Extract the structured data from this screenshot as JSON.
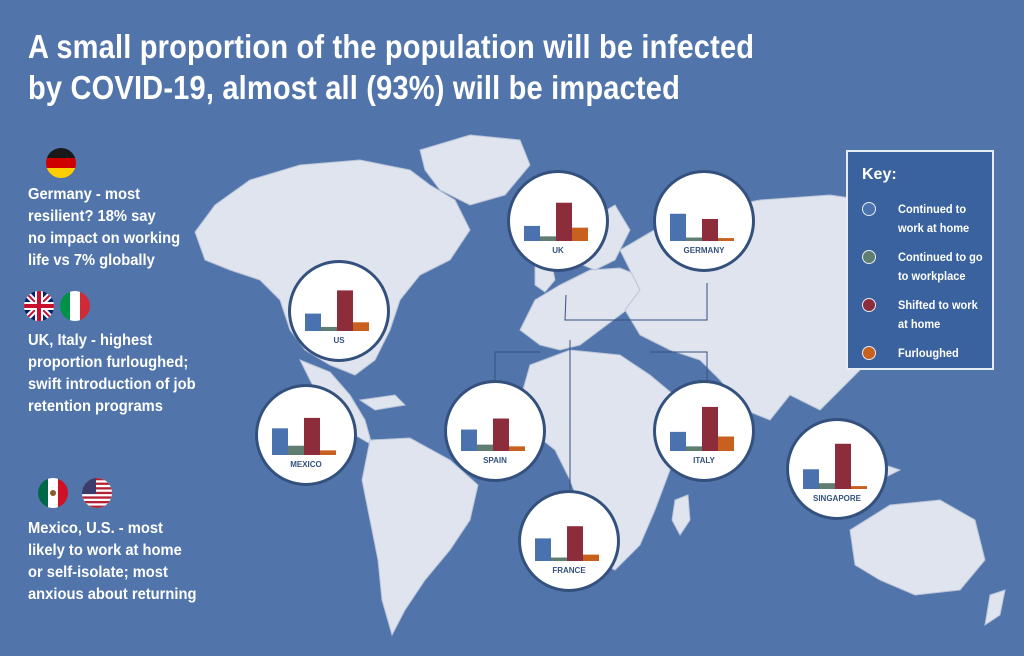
{
  "title": {
    "line1": "A small proportion of the population will be infected",
    "line2": "by COVID-19, almost all (93%) will be impacted"
  },
  "notes": {
    "germany": [
      "Germany - most",
      "resilient? 18% say",
      "no impact on working",
      "life vs 7% globally"
    ],
    "uk_italy": [
      "UK, Italy - highest",
      "proportion furloughed;",
      "swift introduction of job",
      "retention programs"
    ],
    "mexico_us": [
      "Mexico, U.S. -  most",
      "likely to work at home",
      "or self-isolate; most",
      "anxious about returning"
    ]
  },
  "key": {
    "title": "Key:",
    "items": [
      {
        "lines": [
          "Continued to",
          "work at home"
        ],
        "color": "#4a72ae"
      },
      {
        "lines": [
          "Continued to go",
          "to workplace"
        ],
        "color": "#5f7d70"
      },
      {
        "lines": [
          "Shifted to work",
          "at home"
        ],
        "color": "#8d2d3c"
      },
      {
        "lines": [
          "Furloughed"
        ],
        "color": "#c8601f"
      }
    ]
  },
  "chart_data": {
    "type": "bar",
    "series_names": [
      "Continued to work at home",
      "Continued to go to workplace",
      "Shifted to work at home",
      "Furloughed"
    ],
    "colors": [
      "#4a72ae",
      "#5f7d70",
      "#8d2d3c",
      "#c8601f"
    ],
    "ylim": [
      0,
      100
    ],
    "countries": [
      {
        "name": "US",
        "values": [
          30,
          7,
          70,
          15
        ]
      },
      {
        "name": "UK",
        "values": [
          26,
          8,
          66,
          23
        ]
      },
      {
        "name": "GERMANY",
        "values": [
          47,
          6,
          38,
          5
        ]
      },
      {
        "name": "MEXICO",
        "values": [
          46,
          16,
          64,
          8
        ]
      },
      {
        "name": "SPAIN",
        "values": [
          37,
          11,
          56,
          8
        ]
      },
      {
        "name": "ITALY",
        "values": [
          33,
          8,
          76,
          25
        ]
      },
      {
        "name": "SINGAPORE",
        "values": [
          34,
          10,
          78,
          5
        ]
      },
      {
        "name": "FRANCE",
        "values": [
          39,
          6,
          60,
          11
        ]
      }
    ]
  }
}
